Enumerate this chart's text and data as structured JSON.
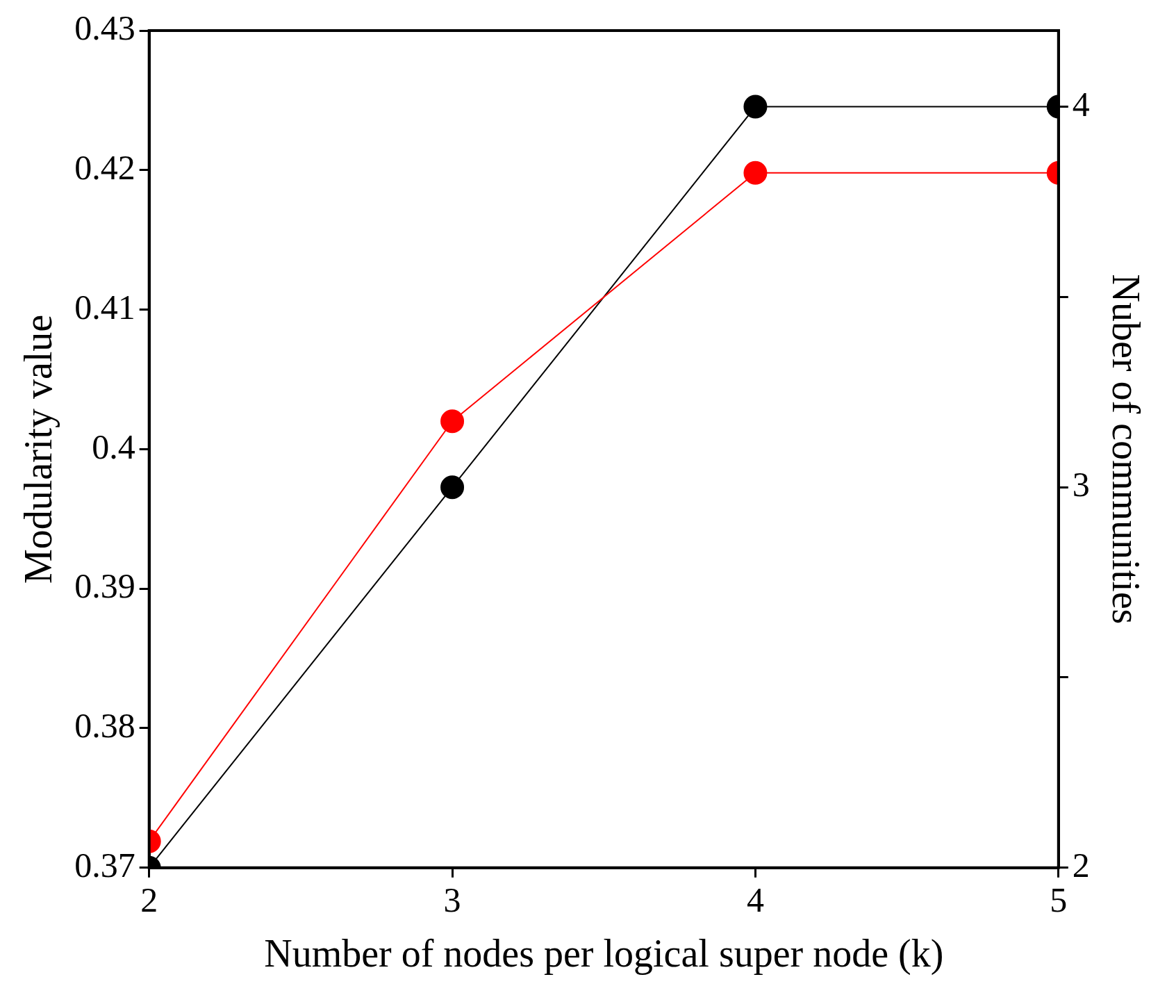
{
  "chart_data": {
    "type": "line",
    "xlabel": "Number of nodes per logical super node (k)",
    "ylabel": "Modularity value",
    "y2label": "Nuber of communities",
    "x": [
      2,
      3,
      4,
      5
    ],
    "series": [
      {
        "color": "#ff0000",
        "values": [
          0.3719,
          0.402,
          0.4198,
          0.4198
        ]
      },
      {
        "color": "#000000",
        "values": [
          2,
          3,
          4,
          4
        ],
        "axis": "y2"
      }
    ],
    "xlim": [
      2,
      5
    ],
    "xticks": [
      2,
      3,
      4,
      5
    ],
    "ylim": [
      0.37,
      0.43
    ],
    "yticks": [
      0.37,
      0.38,
      0.39,
      0.4,
      0.41,
      0.42,
      0.43
    ],
    "y2lim": [
      2,
      4.2
    ],
    "y2ticks": [
      2,
      {
        "value": 2.5,
        "label": null
      },
      3,
      {
        "value": 3.5,
        "label": null
      },
      4
    ],
    "grid": false,
    "legend": false,
    "marker": "circle",
    "line_style": "solid"
  }
}
